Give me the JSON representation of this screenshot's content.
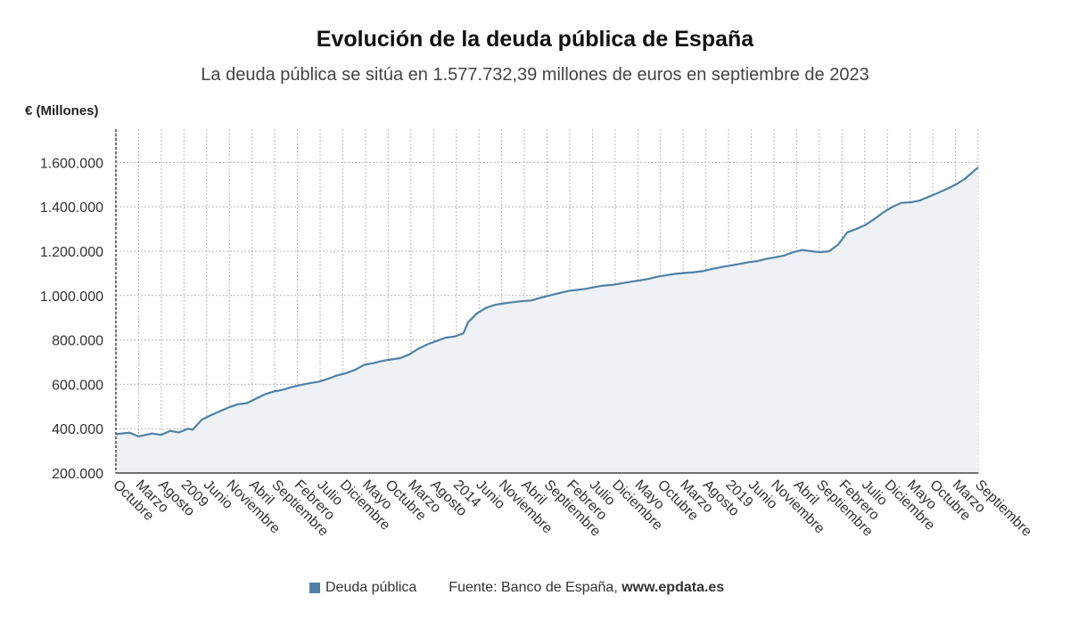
{
  "colors": {
    "line": "#4f81a6",
    "area": "#eef2f6",
    "grid": "#b8b8b8"
  },
  "legend": {
    "label": "Deuda pública",
    "source_prefix": "Fuente: Banco de España, ",
    "source_site": "www.epdata.es"
  },
  "chart_data": {
    "type": "area",
    "title": "Evolución de la deuda pública de España",
    "subtitle": "La deuda pública se sitúa en 1.577.732,39 millones de euros en septiembre de 2023",
    "ylabel": "€ (Millones)",
    "xlabel": "",
    "ylim": [
      200000,
      1750000
    ],
    "yticks": [
      200000,
      400000,
      600000,
      800000,
      1000000,
      1200000,
      1400000,
      1600000
    ],
    "ytick_labels": [
      "200.000",
      "400.000",
      "600.000",
      "800.000",
      "1.000.000",
      "1.200.000",
      "1.400.000",
      "1.600.000"
    ],
    "x_range": [
      "2007-10",
      "2023-09"
    ],
    "x_tick_labels": [
      "Octubre",
      "Marzo",
      "Agosto",
      "2009",
      "Junio",
      "Noviembre",
      "Abril",
      "Septiembre",
      "Febrero",
      "Julio",
      "Diciembre",
      "Mayo",
      "Octubre",
      "Marzo",
      "Agosto",
      "2014",
      "Junio",
      "Noviembre",
      "Abril",
      "Septiembre",
      "Febrero",
      "Julio",
      "Diciembre",
      "Mayo",
      "Octubre",
      "Marzo",
      "Agosto",
      "2019",
      "Junio",
      "Noviembre",
      "Abril",
      "Septiembre",
      "Febrero",
      "Julio",
      "Diciembre",
      "Mayo",
      "Octubre",
      "Marzo",
      "Septiembre"
    ],
    "grid": true,
    "legend_position": "bottom",
    "series": [
      {
        "name": "Deuda pública",
        "points": [
          [
            "2007-10",
            375000
          ],
          [
            "2008-01",
            382000
          ],
          [
            "2008-03",
            365000
          ],
          [
            "2008-06",
            378000
          ],
          [
            "2008-08",
            372000
          ],
          [
            "2008-10",
            390000
          ],
          [
            "2008-12",
            383000
          ],
          [
            "2009-02",
            400000
          ],
          [
            "2009-03",
            395000
          ],
          [
            "2009-05",
            440000
          ],
          [
            "2009-07",
            460000
          ],
          [
            "2009-09",
            478000
          ],
          [
            "2009-11",
            496000
          ],
          [
            "2010-01",
            510000
          ],
          [
            "2010-03",
            515000
          ],
          [
            "2010-05",
            535000
          ],
          [
            "2010-07",
            555000
          ],
          [
            "2010-09",
            568000
          ],
          [
            "2010-11",
            575000
          ],
          [
            "2011-01",
            588000
          ],
          [
            "2011-03",
            597000
          ],
          [
            "2011-05",
            605000
          ],
          [
            "2011-07",
            612000
          ],
          [
            "2011-09",
            625000
          ],
          [
            "2011-11",
            640000
          ],
          [
            "2012-01",
            650000
          ],
          [
            "2012-03",
            665000
          ],
          [
            "2012-05",
            688000
          ],
          [
            "2012-07",
            695000
          ],
          [
            "2012-09",
            705000
          ],
          [
            "2012-11",
            712000
          ],
          [
            "2013-01",
            718000
          ],
          [
            "2013-03",
            735000
          ],
          [
            "2013-05",
            760000
          ],
          [
            "2013-07",
            780000
          ],
          [
            "2013-09",
            795000
          ],
          [
            "2013-11",
            810000
          ],
          [
            "2014-01",
            815000
          ],
          [
            "2014-03",
            830000
          ],
          [
            "2014-04",
            880000
          ],
          [
            "2014-06",
            920000
          ],
          [
            "2014-08",
            945000
          ],
          [
            "2014-10",
            958000
          ],
          [
            "2014-12",
            965000
          ],
          [
            "2015-02",
            970000
          ],
          [
            "2015-04",
            975000
          ],
          [
            "2015-06",
            978000
          ],
          [
            "2015-08",
            990000
          ],
          [
            "2015-10",
            1000000
          ],
          [
            "2015-12",
            1010000
          ],
          [
            "2016-02",
            1020000
          ],
          [
            "2016-04",
            1025000
          ],
          [
            "2016-06",
            1030000
          ],
          [
            "2016-08",
            1038000
          ],
          [
            "2016-10",
            1045000
          ],
          [
            "2016-12",
            1048000
          ],
          [
            "2017-02",
            1055000
          ],
          [
            "2017-04",
            1062000
          ],
          [
            "2017-06",
            1068000
          ],
          [
            "2017-08",
            1075000
          ],
          [
            "2017-10",
            1085000
          ],
          [
            "2017-12",
            1092000
          ],
          [
            "2018-02",
            1098000
          ],
          [
            "2018-04",
            1102000
          ],
          [
            "2018-06",
            1105000
          ],
          [
            "2018-08",
            1110000
          ],
          [
            "2018-10",
            1120000
          ],
          [
            "2018-12",
            1128000
          ],
          [
            "2019-02",
            1135000
          ],
          [
            "2019-04",
            1142000
          ],
          [
            "2019-06",
            1150000
          ],
          [
            "2019-08",
            1155000
          ],
          [
            "2019-10",
            1165000
          ],
          [
            "2019-12",
            1172000
          ],
          [
            "2020-02",
            1180000
          ],
          [
            "2020-04",
            1195000
          ],
          [
            "2020-06",
            1205000
          ],
          [
            "2020-08",
            1200000
          ],
          [
            "2020-10",
            1195000
          ],
          [
            "2020-12",
            1200000
          ],
          [
            "2021-02",
            1230000
          ],
          [
            "2021-04",
            1285000
          ],
          [
            "2021-06",
            1300000
          ],
          [
            "2021-08",
            1318000
          ],
          [
            "2021-10",
            1345000
          ],
          [
            "2021-12",
            1375000
          ],
          [
            "2022-02",
            1400000
          ],
          [
            "2022-04",
            1418000
          ],
          [
            "2022-06",
            1420000
          ],
          [
            "2022-08",
            1428000
          ],
          [
            "2022-10",
            1445000
          ],
          [
            "2022-12",
            1462000
          ],
          [
            "2023-02",
            1480000
          ],
          [
            "2023-04",
            1500000
          ],
          [
            "2023-06",
            1525000
          ],
          [
            "2023-08",
            1560000
          ],
          [
            "2023-09",
            1577732
          ]
        ]
      }
    ]
  }
}
